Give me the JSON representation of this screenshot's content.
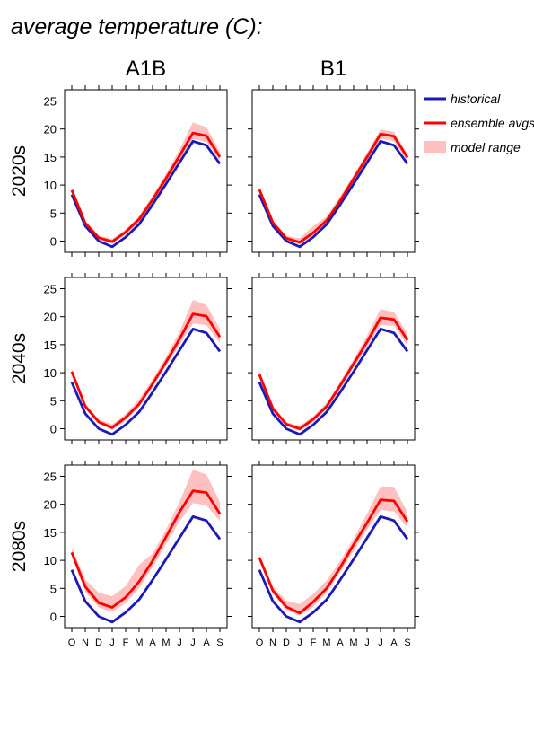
{
  "title": "average temperature (C):",
  "legend": {
    "historical": "historical",
    "ensemble": "ensemble avgs",
    "range": "model range"
  },
  "colors": {
    "historical": "#1a1ab8",
    "ensemble": "#ff0000",
    "range": "#ffc0c0"
  },
  "chart_data": {
    "type": "line",
    "title": "average temperature (C):",
    "scenarios": [
      "A1B",
      "B1"
    ],
    "periods": [
      "2020s",
      "2040s",
      "2080s"
    ],
    "months": [
      "O",
      "N",
      "D",
      "J",
      "F",
      "M",
      "A",
      "M",
      "J",
      "J",
      "A",
      "S"
    ],
    "ylim": [
      -2,
      27
    ],
    "yticks": [
      0,
      5,
      10,
      15,
      20,
      25
    ],
    "historical": [
      8.3,
      2.7,
      0.0,
      -1.0,
      0.7,
      3.0,
      6.5,
      10.2,
      14.0,
      17.8,
      17.1,
      13.8
    ],
    "panels": [
      {
        "scenario": "A1B",
        "period": "2020s",
        "ensemble": [
          9.1,
          3.2,
          0.6,
          -0.1,
          1.6,
          3.9,
          7.4,
          11.2,
          15.2,
          19.3,
          18.8,
          15.0
        ],
        "range_low": [
          8.7,
          2.9,
          0.3,
          -0.5,
          1.2,
          3.4,
          6.9,
          10.6,
          14.4,
          18.2,
          17.7,
          14.3
        ],
        "range_high": [
          9.5,
          3.6,
          1.0,
          0.4,
          2.1,
          4.5,
          8.1,
          12.0,
          16.3,
          21.2,
          20.3,
          16.0
        ]
      },
      {
        "scenario": "B1",
        "period": "2020s",
        "ensemble": [
          9.2,
          3.3,
          0.5,
          -0.2,
          1.5,
          3.7,
          7.2,
          11.1,
          15.0,
          19.1,
          18.7,
          14.9
        ],
        "range_low": [
          8.8,
          2.9,
          0.2,
          -0.6,
          1.0,
          3.3,
          6.7,
          10.5,
          14.4,
          18.3,
          17.8,
          14.2
        ],
        "range_high": [
          9.6,
          3.7,
          0.9,
          0.5,
          2.7,
          4.4,
          8.0,
          11.8,
          15.8,
          19.9,
          19.5,
          15.6
        ]
      },
      {
        "scenario": "A1B",
        "period": "2040s",
        "ensemble": [
          10.2,
          4.0,
          1.2,
          0.2,
          2.0,
          4.4,
          8.0,
          11.9,
          16.0,
          20.5,
          20.1,
          16.4
        ],
        "range_low": [
          9.7,
          3.6,
          0.8,
          -0.2,
          1.5,
          3.9,
          7.5,
          11.2,
          15.0,
          18.8,
          18.5,
          15.3
        ],
        "range_high": [
          10.7,
          4.5,
          1.7,
          0.8,
          2.6,
          5.3,
          8.8,
          12.8,
          17.3,
          23.0,
          22.1,
          17.8
        ]
      },
      {
        "scenario": "B1",
        "period": "2040s",
        "ensemble": [
          9.7,
          3.6,
          0.8,
          0.0,
          1.7,
          4.0,
          7.7,
          11.6,
          15.5,
          19.8,
          19.5,
          15.8
        ],
        "range_low": [
          9.2,
          3.2,
          0.4,
          -0.4,
          1.2,
          3.5,
          7.1,
          10.9,
          14.6,
          18.5,
          18.4,
          14.8
        ],
        "range_high": [
          10.2,
          4.1,
          1.2,
          0.5,
          2.2,
          4.6,
          8.4,
          12.4,
          16.6,
          21.4,
          20.8,
          17.0
        ]
      },
      {
        "scenario": "A1B",
        "period": "2080s",
        "ensemble": [
          11.4,
          5.3,
          2.4,
          1.6,
          3.4,
          6.2,
          9.9,
          14.2,
          18.6,
          22.4,
          22.1,
          18.3
        ],
        "range_low": [
          10.8,
          4.4,
          1.6,
          0.8,
          2.4,
          5.0,
          8.8,
          12.9,
          16.9,
          20.2,
          19.8,
          17.0
        ],
        "range_high": [
          12.2,
          6.6,
          4.2,
          3.6,
          5.4,
          9.2,
          11.2,
          15.5,
          20.4,
          26.2,
          25.3,
          20.5
        ]
      },
      {
        "scenario": "B1",
        "period": "2080s",
        "ensemble": [
          10.5,
          4.6,
          1.7,
          0.6,
          2.6,
          5.0,
          8.7,
          12.8,
          16.7,
          20.8,
          20.6,
          16.9
        ],
        "range_low": [
          10.1,
          4.0,
          1.1,
          0.1,
          1.7,
          4.3,
          7.9,
          11.7,
          15.5,
          19.0,
          18.7,
          15.8
        ],
        "range_high": [
          11.0,
          5.3,
          2.8,
          2.2,
          4.0,
          6.4,
          9.9,
          13.9,
          18.3,
          23.2,
          23.1,
          18.6
        ]
      }
    ]
  }
}
